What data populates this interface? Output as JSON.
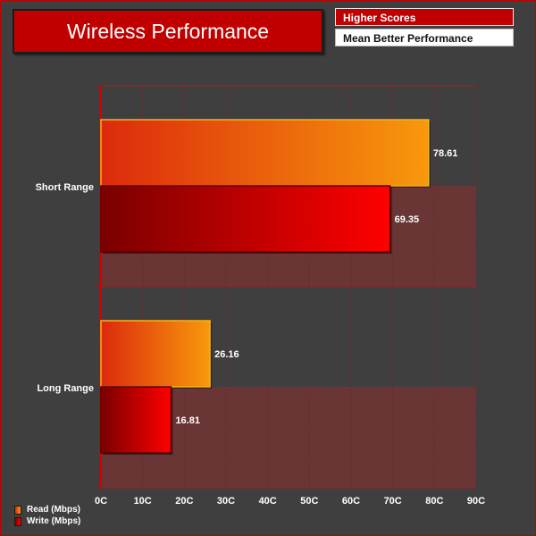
{
  "title": "Wireless Performance",
  "info": {
    "line1": "Higher Scores",
    "line2": "Mean Better Performance"
  },
  "colors": {
    "accent": "#c00000",
    "background": "#3f3f3f",
    "read_start": "#dc2a0c",
    "read_end": "#f8990c",
    "write_start": "#7a0000",
    "write_end": "#ff0000"
  },
  "chart_data": {
    "type": "bar",
    "orientation": "horizontal",
    "categories": [
      "Short Range",
      "Long Range"
    ],
    "series": [
      {
        "name": "Read (Mbps)",
        "values": [
          78.61,
          26.16
        ]
      },
      {
        "name": "Write (Mbps)",
        "values": [
          69.35,
          16.81
        ]
      }
    ],
    "data_labels": [
      [
        "78.61",
        "26.16"
      ],
      [
        "69.35",
        "16.81"
      ]
    ],
    "xlim": [
      0,
      90
    ],
    "xticks": [
      0,
      10,
      20,
      30,
      40,
      50,
      60,
      70,
      80,
      90
    ],
    "xtick_labels": [
      "0C",
      "10C",
      "20C",
      "30C",
      "40C",
      "50C",
      "60C",
      "70C",
      "80C",
      "90C"
    ],
    "xlabel": "",
    "ylabel": "",
    "grid": true,
    "legend_position": "bottom-left"
  }
}
